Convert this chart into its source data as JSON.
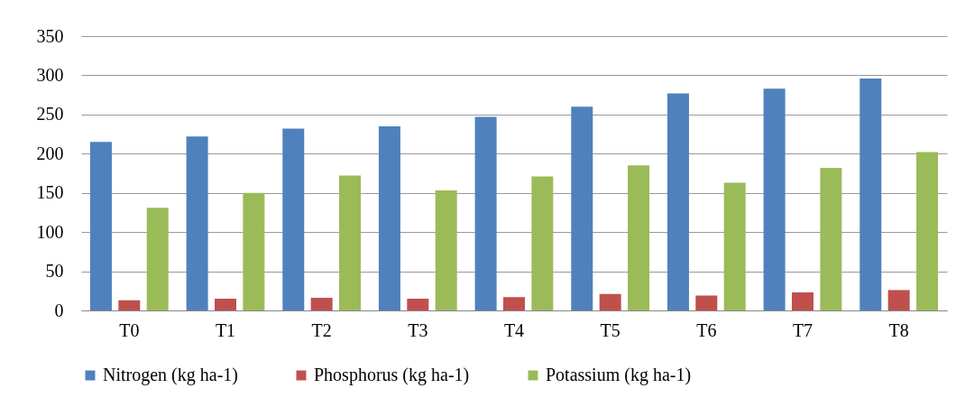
{
  "chart_data": {
    "type": "bar",
    "categories": [
      "T0",
      "T1",
      "T2",
      "T3",
      "T4",
      "T5",
      "T6",
      "T7",
      "T8"
    ],
    "series": [
      {
        "name": "Nitrogen (kg ha-1)",
        "color": "#4f81bd",
        "values": [
          215,
          222,
          232,
          235,
          247,
          260,
          277,
          283,
          296
        ]
      },
      {
        "name": "Phosphorus (kg ha-1)",
        "color": "#c0504d",
        "values": [
          13,
          15,
          16,
          15,
          17,
          21,
          19,
          23,
          26
        ]
      },
      {
        "name": "Potassium (kg ha-1)",
        "color": "#9bbb59",
        "values": [
          131,
          150,
          172,
          153,
          171,
          185,
          163,
          182,
          202
        ]
      }
    ],
    "ylim": [
      0,
      350
    ],
    "yticks": [
      0,
      50,
      100,
      150,
      200,
      250,
      300,
      350
    ],
    "grid": "y",
    "legend": "bottom"
  }
}
